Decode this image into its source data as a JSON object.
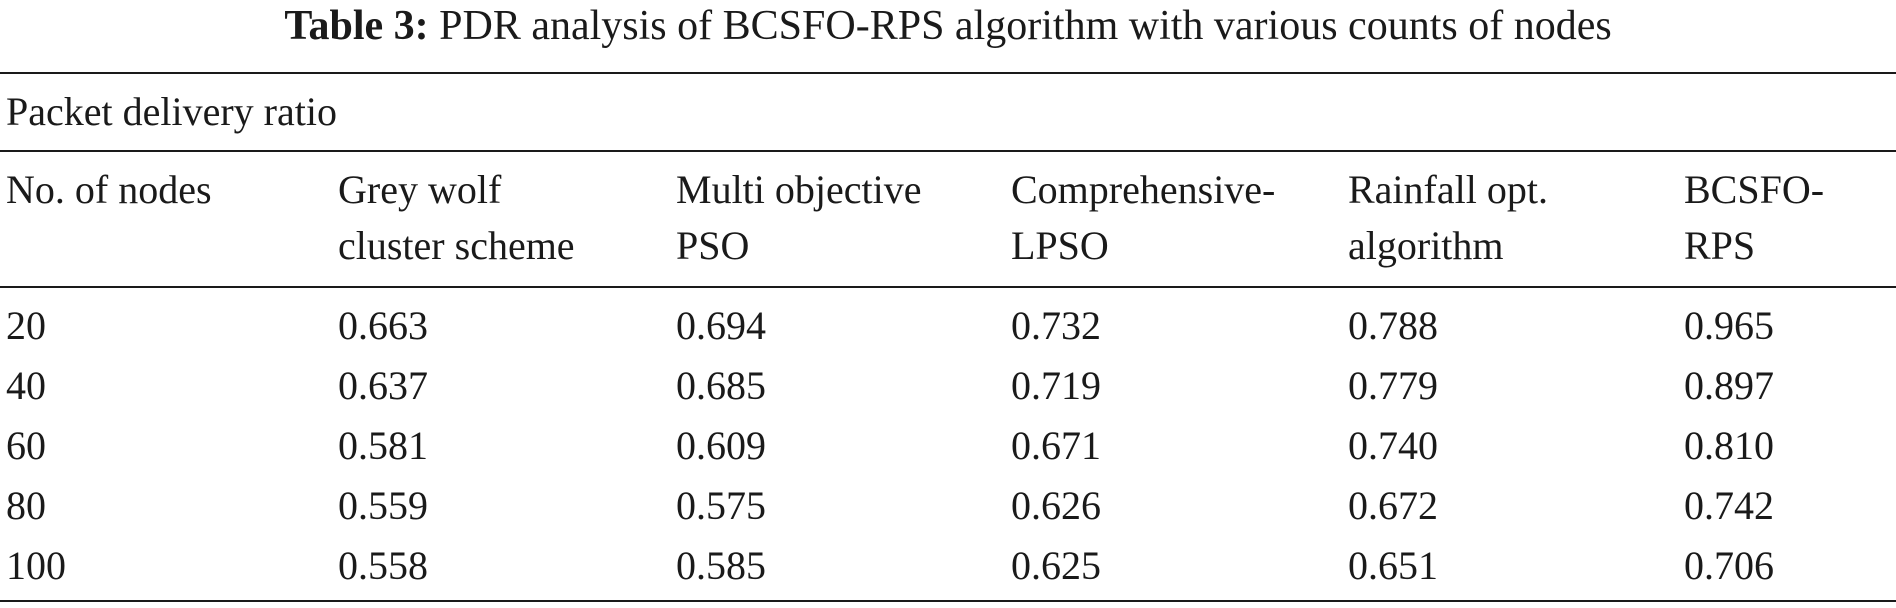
{
  "caption": {
    "label": "Table 3:",
    "text": "PDR analysis of BCSFO-RPS algorithm with various counts of nodes"
  },
  "group_label": "Packet delivery ratio",
  "columns": [
    {
      "line1": "No. of nodes",
      "line2": ""
    },
    {
      "line1": "Grey wolf",
      "line2": "cluster scheme"
    },
    {
      "line1": "Multi objective",
      "line2": "PSO"
    },
    {
      "line1": "Comprehensive-",
      "line2": "LPSO"
    },
    {
      "line1": "Rainfall opt.",
      "line2": "algorithm"
    },
    {
      "line1": "BCSFO-",
      "line2": "RPS"
    }
  ],
  "rows": [
    [
      "20",
      "0.663",
      "0.694",
      "0.732",
      "0.788",
      "0.965"
    ],
    [
      "40",
      "0.637",
      "0.685",
      "0.719",
      "0.779",
      "0.897"
    ],
    [
      "60",
      "0.581",
      "0.609",
      "0.671",
      "0.740",
      "0.810"
    ],
    [
      "80",
      "0.559",
      "0.575",
      "0.626",
      "0.672",
      "0.742"
    ],
    [
      "100",
      "0.558",
      "0.585",
      "0.625",
      "0.651",
      "0.706"
    ]
  ]
}
